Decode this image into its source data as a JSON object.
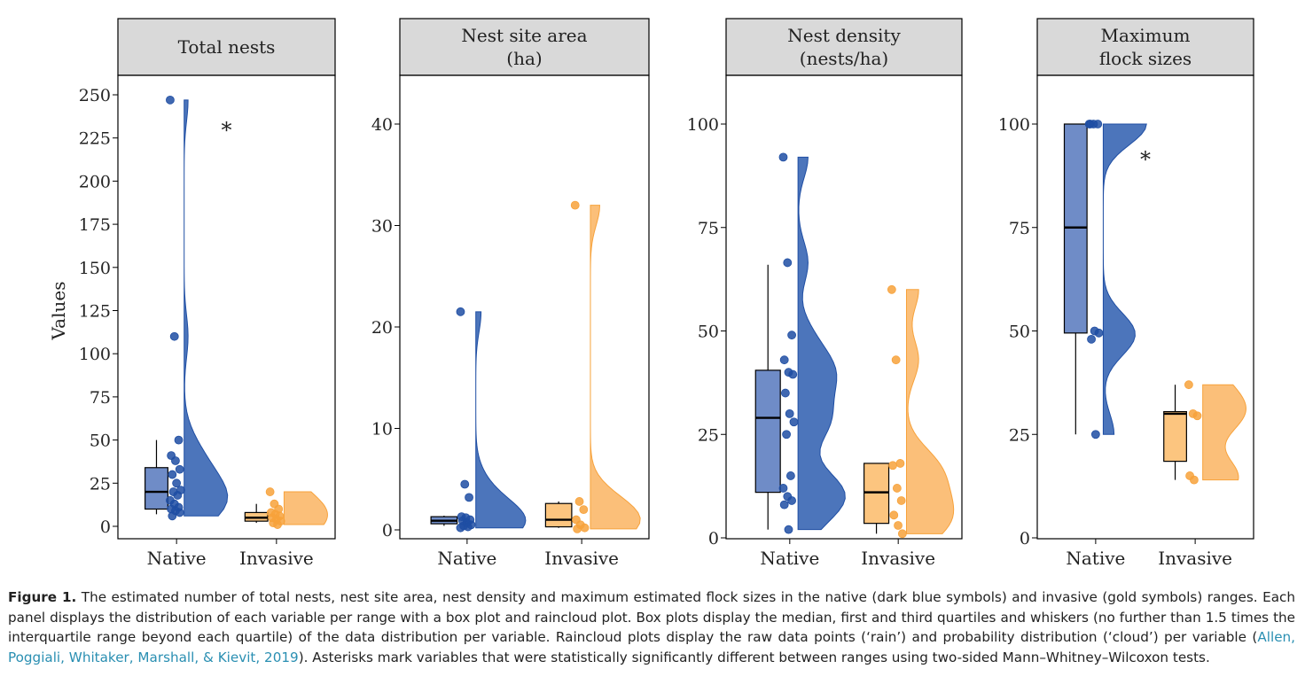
{
  "chart_data": [
    {
      "type": "box+raincloud",
      "title": "Total nests",
      "ylabel": "Values",
      "ylim": [
        0,
        260
      ],
      "yticks": [
        0,
        25,
        50,
        75,
        100,
        125,
        150,
        175,
        200,
        225,
        250
      ],
      "categories": [
        "Native",
        "Invasive"
      ],
      "significance": "*",
      "series": [
        {
          "name": "Native",
          "box": {
            "whisker_low": 7,
            "q1": 10,
            "median": 20,
            "q3": 34,
            "whisker_high": 50
          },
          "points": [
            247,
            110,
            50,
            41,
            38,
            33,
            30,
            25,
            21,
            20,
            18,
            15,
            13,
            11,
            10,
            9,
            8,
            6
          ]
        },
        {
          "name": "Invasive",
          "box": {
            "whisker_low": 2,
            "q1": 3,
            "median": 5,
            "q3": 8,
            "whisker_high": 13
          },
          "points": [
            20,
            13,
            10,
            8,
            7,
            6,
            5,
            4,
            3,
            2,
            1
          ]
        }
      ]
    },
    {
      "type": "box+raincloud",
      "title": "Nest site area\n(ha)",
      "ylabel": "",
      "ylim": [
        0,
        47
      ],
      "yticks": [
        0,
        10,
        20,
        30,
        40
      ],
      "categories": [
        "Native",
        "Invasive"
      ],
      "significance": "",
      "series": [
        {
          "name": "Native",
          "box": {
            "whisker_low": 0.4,
            "q1": 0.6,
            "median": 0.9,
            "q3": 1.3,
            "whisker_high": 1.4
          },
          "points": [
            21.5,
            4.5,
            3.2,
            1.3,
            1.2,
            1.0,
            0.9,
            0.7,
            0.5,
            0.4,
            0.3,
            0.2
          ]
        },
        {
          "name": "Invasive",
          "box": {
            "whisker_low": 0.2,
            "q1": 0.3,
            "median": 1.0,
            "q3": 2.6,
            "whisker_high": 2.8
          },
          "points": [
            32.0,
            2.8,
            2.0,
            1.0,
            0.5,
            0.2,
            0.1
          ]
        }
      ]
    },
    {
      "type": "box+raincloud",
      "title": "Nest density\n(nests/ha)",
      "ylabel": "",
      "ylim": [
        -5,
        123
      ],
      "yticks": [
        0,
        25,
        50,
        75,
        100
      ],
      "categories": [
        "Native",
        "Invasive"
      ],
      "significance": "",
      "series": [
        {
          "name": "Native",
          "box": {
            "whisker_low": 2,
            "q1": 11,
            "median": 29,
            "q3": 40.5,
            "whisker_high": 66
          },
          "points": [
            92,
            66.5,
            49,
            43,
            40,
            39.5,
            35,
            30,
            28,
            25,
            15,
            12,
            10,
            9,
            8,
            2
          ]
        },
        {
          "name": "Invasive",
          "box": {
            "whisker_low": 1,
            "q1": 3.5,
            "median": 11,
            "q3": 18,
            "whisker_high": 18
          },
          "points": [
            60,
            43,
            18,
            17.5,
            12,
            9,
            5.5,
            3,
            1
          ]
        }
      ]
    },
    {
      "type": "box+raincloud",
      "title": "Maximum\nflock sizes",
      "ylabel": "",
      "ylim": [
        -5,
        123
      ],
      "yticks": [
        0,
        25,
        50,
        75,
        100
      ],
      "categories": [
        "Native",
        "Invasive"
      ],
      "significance": "*",
      "series": [
        {
          "name": "Native",
          "box": {
            "whisker_low": 25,
            "q1": 49.5,
            "median": 75,
            "q3": 100,
            "whisker_high": 100
          },
          "points": [
            100,
            100,
            100,
            100,
            50,
            49.5,
            48,
            25
          ]
        },
        {
          "name": "Invasive",
          "box": {
            "whisker_low": 14,
            "q1": 18.5,
            "median": 30,
            "q3": 30.5,
            "whisker_high": 37
          },
          "points": [
            37,
            30,
            29.5,
            15,
            14
          ]
        }
      ]
    }
  ],
  "colors": {
    "native_box": "#6f8cc7",
    "native_point": "#1f4ea3",
    "native_cloud": "#3866b4",
    "invasive_box": "#fcc57f",
    "invasive_point": "#f7a23b",
    "invasive_cloud": "#fbb86a",
    "header_bg": "#d9d9d9"
  },
  "caption": {
    "label": "Figure 1.",
    "text_part1": " The estimated number of total nests, nest site area, nest density and maximum estimated flock sizes in the native (dark blue symbols) and invasive (gold symbols) ranges. Each panel displays the distribution of each variable per range with a box plot and raincloud plot. Box plots display the median, first and third quartiles and whiskers (no further than 1.5 times the interquartile range beyond each quartile) of the data distribution per variable. Raincloud plots display the raw data points (‘rain’) and probability distribution (‘cloud’) per variable (",
    "citation": "Allen, Poggiali, Whitaker, Marshall, & Kievit, 2019",
    "text_part2": "). Asterisks mark variables that were statistically significantly different between ranges using two-sided Mann–Whitney–Wilcoxon tests."
  }
}
